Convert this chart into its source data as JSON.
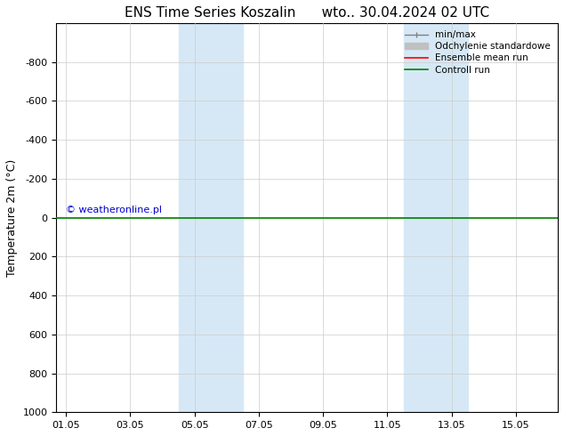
{
  "title": "ENS Time Series Koszalin      wto.. 30.04.2024 02 UTC",
  "ylabel": "Temperature 2m (°C)",
  "xlim_start": "2024-05-01",
  "xlim_end": "2024-05-16",
  "ylim": [
    -1000,
    1000
  ],
  "yticks": [
    -800,
    -600,
    -400,
    -200,
    0,
    200,
    400,
    600,
    800,
    1000
  ],
  "xtick_labels": [
    "01.05",
    "03.05",
    "05.05",
    "07.05",
    "09.05",
    "11.05",
    "13.05",
    "15.05"
  ],
  "xtick_positions": [
    0,
    2,
    4,
    6,
    8,
    10,
    12,
    14
  ],
  "shaded_regions": [
    {
      "start": 3.5,
      "end": 5.5
    },
    {
      "start": 10.5,
      "end": 12.5
    }
  ],
  "shade_color": "#d6e8f5",
  "control_run_y": 0,
  "control_run_color": "#008000",
  "ensemble_mean_color": "#ff0000",
  "minmax_color": "#808080",
  "std_color": "#c0c0c0",
  "watermark": "© weatheronline.pl",
  "watermark_color": "#0000cc",
  "background_color": "#ffffff",
  "legend_entries": [
    "min/max",
    "Odchylenie standardowe",
    "Ensemble mean run",
    "Controll run"
  ],
  "legend_colors": [
    "#808080",
    "#c0c0c0",
    "#ff0000",
    "#008000"
  ],
  "title_fontsize": 11,
  "tick_fontsize": 8,
  "ylabel_fontsize": 9
}
